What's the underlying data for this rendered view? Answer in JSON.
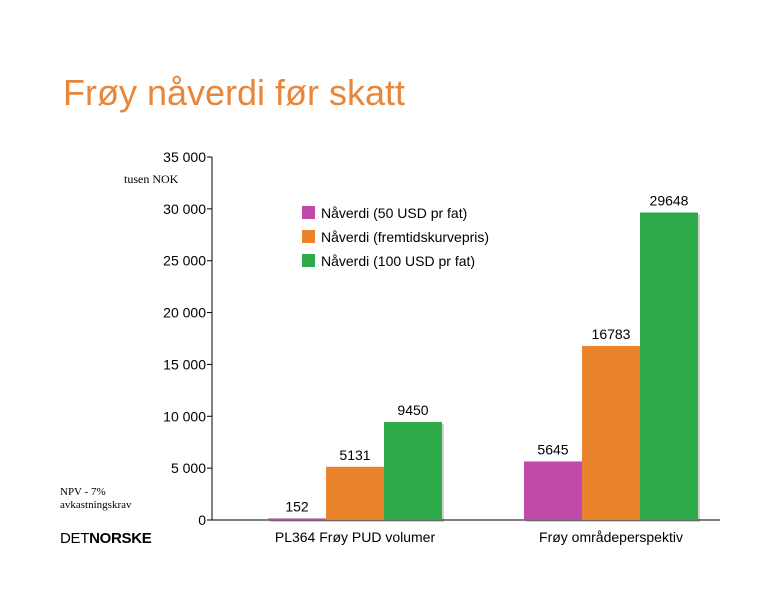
{
  "slide": {
    "unit_label": "tusen NOK",
    "note_line1": "NPV - 7%",
    "note_line2": "avkastningskrav",
    "logo_part1": "DET",
    "logo_part2": "NORSKE"
  },
  "chart_data": {
    "type": "bar",
    "title": "Frøy nåverdi før skatt",
    "categories": [
      "PL364 Frøy PUD volumer",
      "Frøy områdeperspektiv"
    ],
    "series": [
      {
        "name": "Nåverdi (50 USD pr fat)",
        "values": [
          152,
          5645
        ],
        "color": "#c04aaa"
      },
      {
        "name": "Nåverdi (fremtidskurvepris)",
        "values": [
          5131,
          16783
        ],
        "color": "#ea832c"
      },
      {
        "name": "Nåverdi (100 USD pr fat)",
        "values": [
          9450,
          29648
        ],
        "color": "#2eaa4a"
      }
    ],
    "ylim": [
      0,
      35000
    ],
    "yticks": [
      0,
      5000,
      10000,
      15000,
      20000,
      25000,
      30000,
      35000
    ],
    "ytick_labels": [
      "0",
      "5 000",
      "10 000",
      "15 000",
      "20 000",
      "25 000",
      "30 000",
      "35 000"
    ],
    "legend_position": "top-left",
    "grid": false
  }
}
